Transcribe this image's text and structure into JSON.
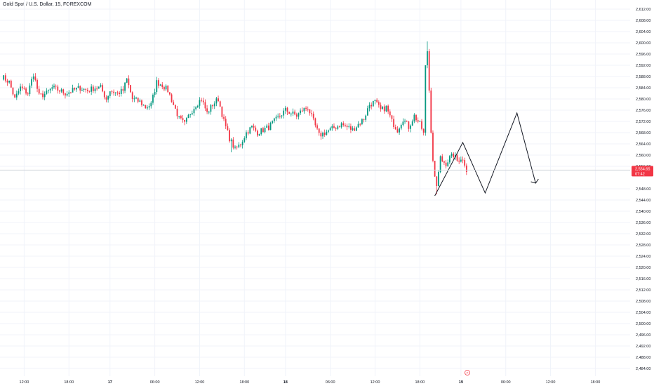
{
  "header": {
    "symbol_title": "Gold Spot / U.S. Dollar, 15, FOREXCOM"
  },
  "price_tag": {
    "price": "2,554.65",
    "countdown": "07:42",
    "color": "#f23645"
  },
  "colors": {
    "up": "#089981",
    "down": "#f23645",
    "grid": "#f0f3fa",
    "drawing": "#131722",
    "text": "#131722"
  },
  "event_marker": {
    "label": "F",
    "icon": "economic-event-flag-icon"
  },
  "chart_data": {
    "type": "candlestick",
    "ylim": [
      2482,
      2614
    ],
    "y_ticks": [
      {
        "value": 2612,
        "label": "2,612.00"
      },
      {
        "value": 2608,
        "label": "2,608.00"
      },
      {
        "value": 2604,
        "label": "2,604.00"
      },
      {
        "value": 2600,
        "label": "2,600.00"
      },
      {
        "value": 2596,
        "label": "2,596.00"
      },
      {
        "value": 2592,
        "label": "2,592.00"
      },
      {
        "value": 2588,
        "label": "2,588.00"
      },
      {
        "value": 2584,
        "label": "2,584.00"
      },
      {
        "value": 2580,
        "label": "2,580.00"
      },
      {
        "value": 2576,
        "label": "2,576.00"
      },
      {
        "value": 2572,
        "label": "2,572.00"
      },
      {
        "value": 2568,
        "label": "2,568.00"
      },
      {
        "value": 2564,
        "label": "2,564.00"
      },
      {
        "value": 2560,
        "label": "2,560.00"
      },
      {
        "value": 2556,
        "label": "2,556.00"
      },
      {
        "value": 2548,
        "label": "2,548.00"
      },
      {
        "value": 2544,
        "label": "2,544.00"
      },
      {
        "value": 2540,
        "label": "2,540.00"
      },
      {
        "value": 2536,
        "label": "2,536.00"
      },
      {
        "value": 2532,
        "label": "2,532.00"
      },
      {
        "value": 2528,
        "label": "2,528.00"
      },
      {
        "value": 2524,
        "label": "2,524.00"
      },
      {
        "value": 2520,
        "label": "2,520.00"
      },
      {
        "value": 2516,
        "label": "2,516.00"
      },
      {
        "value": 2512,
        "label": "2,512.00"
      },
      {
        "value": 2508,
        "label": "2,508.00"
      },
      {
        "value": 2504,
        "label": "2,504.00"
      },
      {
        "value": 2500,
        "label": "2,500.00"
      },
      {
        "value": 2496,
        "label": "2,496.00"
      },
      {
        "value": 2492,
        "label": "2,492.00"
      },
      {
        "value": 2488,
        "label": "2,488.00"
      },
      {
        "value": 2484,
        "label": "2,484.00"
      }
    ],
    "x_ticks": [
      {
        "index": 12,
        "label": "12:00",
        "bold": false
      },
      {
        "index": 36,
        "label": "18:00",
        "bold": false
      },
      {
        "index": 58,
        "label": "17",
        "bold": true
      },
      {
        "index": 82,
        "label": "06:00",
        "bold": false
      },
      {
        "index": 106,
        "label": "12:00",
        "bold": false
      },
      {
        "index": 130,
        "label": "18:00",
        "bold": false
      },
      {
        "index": 152,
        "label": "18",
        "bold": true
      },
      {
        "index": 176,
        "label": "06:00",
        "bold": false
      },
      {
        "index": 200,
        "label": "12:00",
        "bold": false
      },
      {
        "index": 224,
        "label": "18:00",
        "bold": false
      },
      {
        "index": 246,
        "label": "19",
        "bold": true
      },
      {
        "index": 270,
        "label": "06:00",
        "bold": false
      },
      {
        "index": 294,
        "label": "12:00",
        "bold": false
      },
      {
        "index": 318,
        "label": "18:00",
        "bold": false
      }
    ],
    "current_price": 2554.65,
    "anchors": [
      [
        0,
        2588
      ],
      [
        4,
        2586
      ],
      [
        7,
        2580
      ],
      [
        10,
        2584
      ],
      [
        14,
        2582
      ],
      [
        17,
        2589
      ],
      [
        20,
        2581
      ],
      [
        24,
        2582
      ],
      [
        27,
        2584
      ],
      [
        31,
        2583
      ],
      [
        34,
        2582
      ],
      [
        38,
        2583
      ],
      [
        42,
        2584
      ],
      [
        46,
        2583
      ],
      [
        50,
        2584
      ],
      [
        53,
        2584
      ],
      [
        56,
        2580
      ],
      [
        58,
        2583
      ],
      [
        62,
        2582
      ],
      [
        65,
        2583
      ],
      [
        67,
        2587
      ],
      [
        70,
        2580
      ],
      [
        74,
        2579
      ],
      [
        77,
        2577
      ],
      [
        80,
        2578
      ],
      [
        83,
        2586
      ],
      [
        86,
        2585
      ],
      [
        89,
        2583
      ],
      [
        92,
        2578
      ],
      [
        95,
        2573
      ],
      [
        98,
        2571
      ],
      [
        101,
        2575
      ],
      [
        104,
        2578
      ],
      [
        107,
        2580
      ],
      [
        110,
        2575
      ],
      [
        113,
        2578
      ],
      [
        116,
        2580
      ],
      [
        119,
        2572
      ],
      [
        122,
        2566
      ],
      [
        125,
        2562
      ],
      [
        128,
        2564
      ],
      [
        131,
        2568
      ],
      [
        134,
        2570
      ],
      [
        137,
        2568
      ],
      [
        140,
        2569
      ],
      [
        143,
        2570
      ],
      [
        146,
        2572
      ],
      [
        149,
        2574
      ],
      [
        152,
        2576
      ],
      [
        155,
        2575
      ],
      [
        158,
        2574
      ],
      [
        161,
        2576
      ],
      [
        164,
        2577
      ],
      [
        167,
        2572
      ],
      [
        170,
        2567
      ],
      [
        173,
        2568
      ],
      [
        176,
        2569
      ],
      [
        179,
        2570
      ],
      [
        182,
        2571
      ],
      [
        185,
        2570
      ],
      [
        188,
        2569
      ],
      [
        191,
        2571
      ],
      [
        194,
        2573
      ],
      [
        197,
        2578
      ],
      [
        200,
        2579
      ],
      [
        203,
        2576
      ],
      [
        206,
        2577
      ],
      [
        209,
        2572
      ],
      [
        212,
        2569
      ],
      [
        215,
        2573
      ],
      [
        218,
        2570
      ],
      [
        221,
        2574
      ],
      [
        224,
        2571
      ],
      [
        226,
        2568
      ],
      [
        227,
        2592
      ],
      [
        228,
        2597
      ],
      [
        229,
        2583
      ],
      [
        230,
        2568
      ],
      [
        231,
        2558
      ],
      [
        232,
        2552
      ],
      [
        233,
        2549
      ],
      [
        234,
        2554
      ],
      [
        235,
        2559
      ],
      [
        236,
        2558
      ],
      [
        238,
        2557
      ],
      [
        240,
        2559
      ],
      [
        242,
        2560
      ],
      [
        244,
        2558
      ],
      [
        246,
        2559
      ],
      [
        248,
        2557
      ],
      [
        249,
        2554
      ]
    ],
    "forecast_path": [
      {
        "index": 232,
        "price": 2545.5
      },
      {
        "index": 247,
        "price": 2564.5
      },
      {
        "index": 259,
        "price": 2546.5
      },
      {
        "index": 276,
        "price": 2575.0
      },
      {
        "index": 286,
        "price": 2550.0
      },
      {
        "index": 283.5,
        "price": 2550.5
      },
      {
        "index": 286,
        "price": 2550.0
      },
      {
        "index": 287.5,
        "price": 2551.5
      }
    ]
  }
}
